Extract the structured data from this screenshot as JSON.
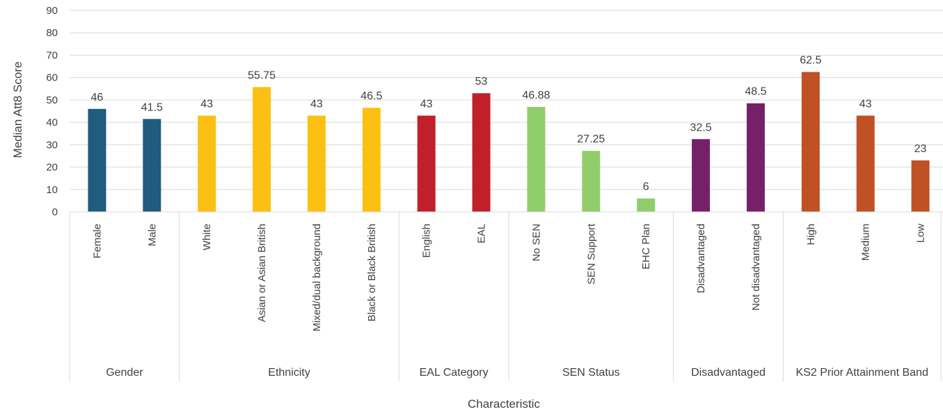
{
  "chart_data": {
    "type": "bar",
    "title": "",
    "xlabel": "Characteristic",
    "ylabel": "Median Att8 Score",
    "ylim": [
      0,
      90
    ],
    "yticks": [
      0,
      10,
      20,
      30,
      40,
      50,
      60,
      70,
      80,
      90
    ],
    "grid": true,
    "legend": "none",
    "groups": [
      {
        "name": "Gender",
        "color": "#1F5C7E",
        "categories": [
          "Female",
          "Male"
        ],
        "values": [
          46,
          41.5
        ],
        "labels": [
          "46",
          "41.5"
        ]
      },
      {
        "name": "Ethnicity",
        "color": "#FCC012",
        "categories": [
          "White",
          "Asian or Asian British",
          "Mixed/dual background",
          "Black or Black British"
        ],
        "values": [
          43,
          55.75,
          43,
          46.5
        ],
        "labels": [
          "43",
          "55.75",
          "43",
          "46.5"
        ]
      },
      {
        "name": "EAL Category",
        "color": "#C0202A",
        "categories": [
          "English",
          "EAL"
        ],
        "values": [
          43,
          53
        ],
        "labels": [
          "43",
          "53"
        ]
      },
      {
        "name": "SEN Status",
        "color": "#92CD6C",
        "categories": [
          "No SEN",
          "SEN Support",
          "EHC Plan"
        ],
        "values": [
          46.88,
          27.25,
          6
        ],
        "labels": [
          "46.88",
          "27.25",
          "6"
        ]
      },
      {
        "name": "Disadvantaged",
        "color": "#76206A",
        "categories": [
          "Disadvantaged",
          "Not disadvantaged"
        ],
        "values": [
          32.5,
          48.5
        ],
        "labels": [
          "32.5",
          "48.5"
        ]
      },
      {
        "name": "KS2 Prior Attainment Band",
        "color": "#BF5125",
        "categories": [
          "High",
          "Medium",
          "Low"
        ],
        "values": [
          62.5,
          43,
          23
        ],
        "labels": [
          "62.5",
          "43",
          "23"
        ]
      }
    ]
  }
}
